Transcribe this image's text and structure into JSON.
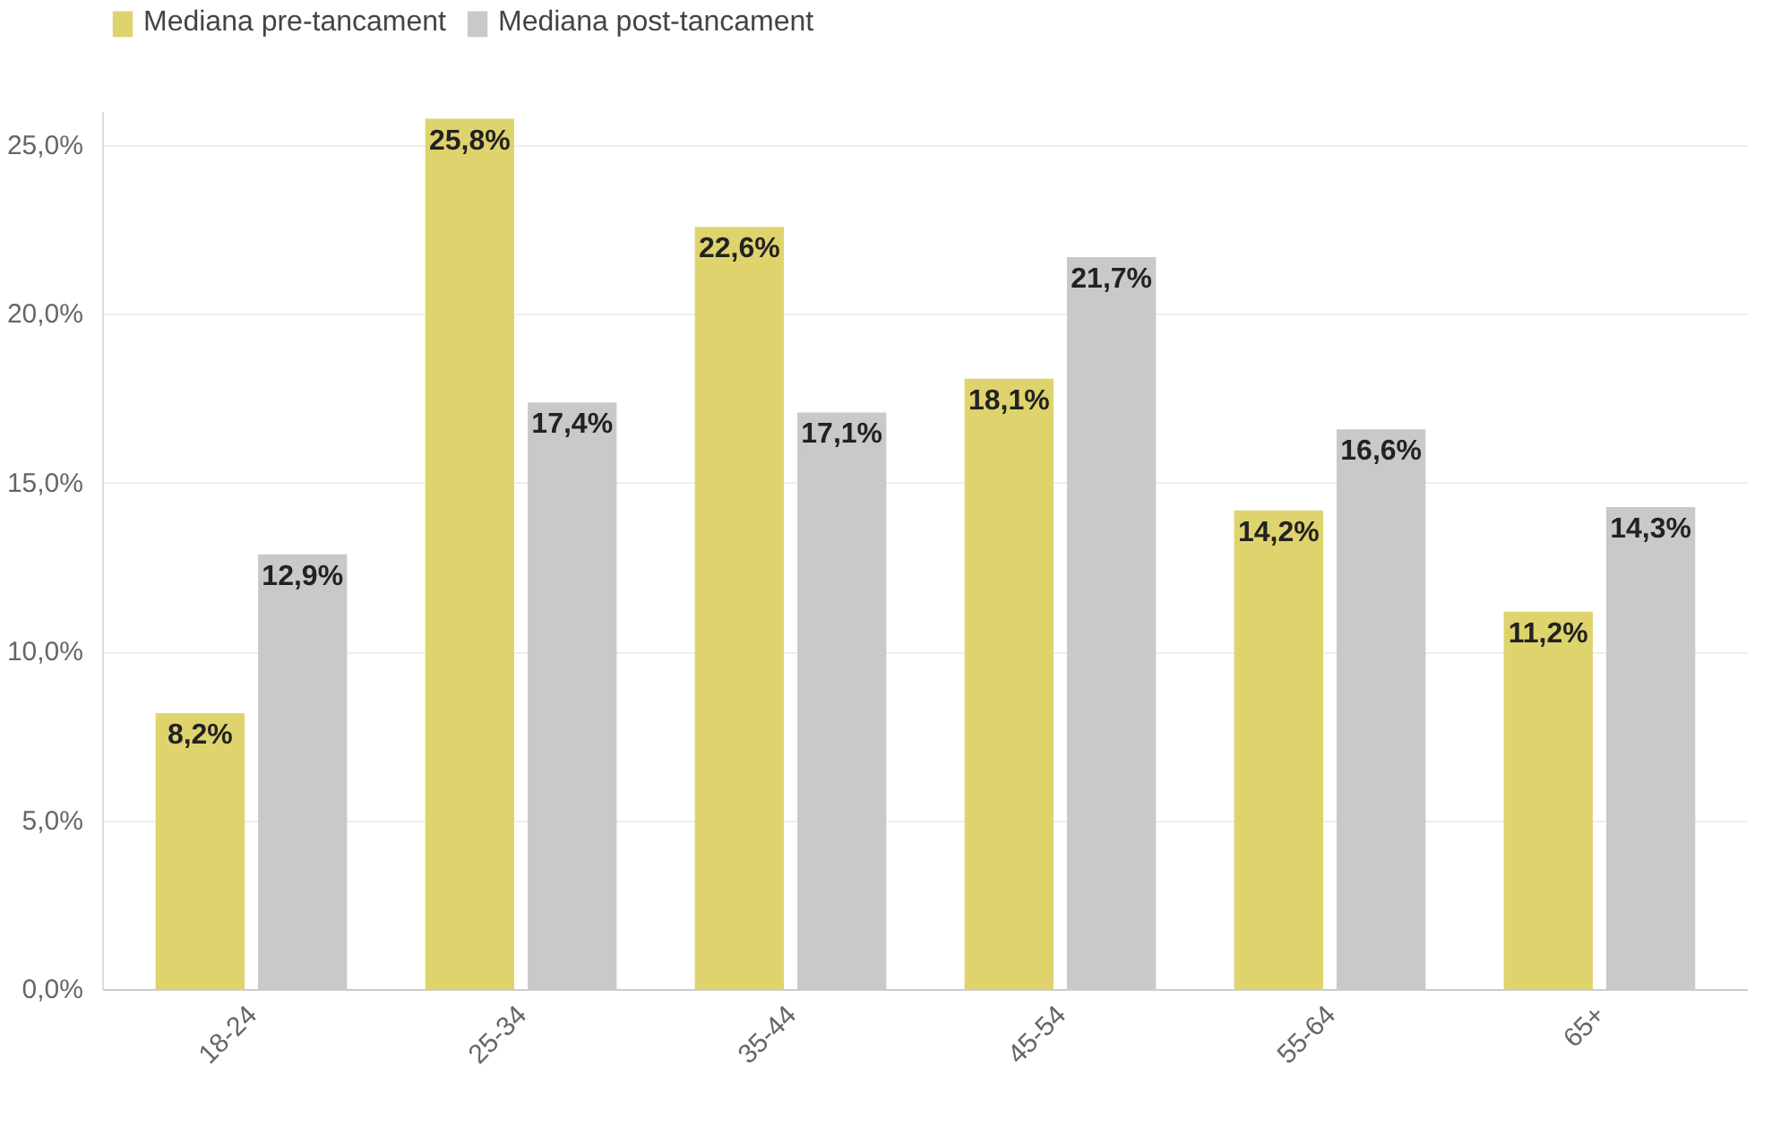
{
  "chart_data": {
    "type": "bar",
    "categories": [
      "18-24",
      "25-34",
      "35-44",
      "45-54",
      "55-64",
      "65+"
    ],
    "series": [
      {
        "name": "Mediana pre-tancament",
        "color": "#dfd36d",
        "values": [
          8.2,
          25.8,
          22.6,
          18.1,
          14.2,
          11.2
        ],
        "value_labels": [
          "8,2%",
          "25,8%",
          "22,6%",
          "18,1%",
          "14,2%",
          "11,2%"
        ]
      },
      {
        "name": "Mediana post-tancament",
        "color": "#c9c9c9",
        "values": [
          12.9,
          17.4,
          17.1,
          21.7,
          16.6,
          14.3
        ],
        "value_labels": [
          "12,9%",
          "17,4%",
          "17,1%",
          "21,7%",
          "16,6%",
          "14,3%"
        ]
      }
    ],
    "ylim": [
      0,
      26
    ],
    "yticks": [
      {
        "value": 0,
        "label": "0,0%"
      },
      {
        "value": 5,
        "label": "5,0%"
      },
      {
        "value": 10,
        "label": "10,0%"
      },
      {
        "value": 15,
        "label": "15,0%"
      },
      {
        "value": 20,
        "label": "20,0%"
      },
      {
        "value": 25,
        "label": "25,0%"
      }
    ],
    "grid": "y",
    "legend": "top left"
  }
}
